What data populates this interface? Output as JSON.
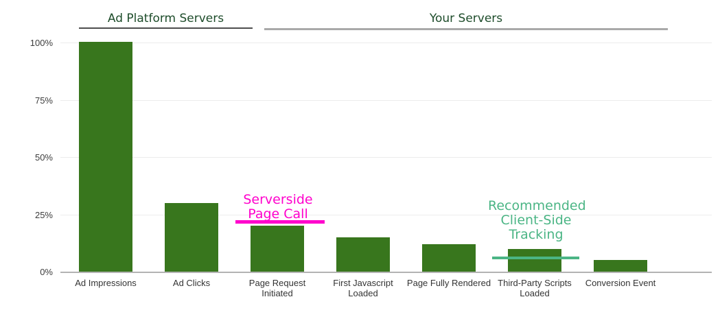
{
  "groups": [
    {
      "label": "Ad Platform Servers"
    },
    {
      "label": "Your Servers"
    }
  ],
  "y_axis": {
    "t100": "100%",
    "t75": "75%",
    "t50": "50%",
    "t25": "25%",
    "t0": "0%"
  },
  "annotations": {
    "serverside": {
      "text": "Serverside Page Call",
      "color": "#ff00cc",
      "level_pct": 20
    },
    "client_side": {
      "text": "Recommended Client-Side Tracking",
      "color": "#4bb585",
      "level_pct": 6
    }
  },
  "colors": {
    "bar": "#38761d",
    "header_text": "#1d4c2a",
    "header_rule_dark": "#4d4d4d",
    "header_rule_light": "#a9a9a9",
    "gridline": "#ececec",
    "baseline": "#b3b3b3",
    "axis_text": "#333333"
  },
  "chart_data": {
    "type": "bar",
    "categories": [
      "Ad Impressions",
      "Ad Clicks",
      "Page Request Initiated",
      "First Javascript Loaded",
      "Page Fully Rendered",
      "Third-Party Scripts Loaded",
      "Conversion Event"
    ],
    "values": [
      100,
      30,
      20,
      15,
      12,
      10,
      5
    ],
    "unit": "%",
    "title": "",
    "xlabel": "",
    "ylabel": "",
    "ylim": [
      0,
      100
    ],
    "yticks": [
      "0%",
      "25%",
      "50%",
      "75%",
      "100%"
    ],
    "grid": "horizontal",
    "legend": "none",
    "group_headers": [
      {
        "label": "Ad Platform Servers",
        "category_range": [
          0,
          1
        ]
      },
      {
        "label": "Your Servers",
        "category_range": [
          2,
          6
        ]
      }
    ],
    "annotations": [
      {
        "text": "Serverside Page Call",
        "target_category": "Page Request Initiated",
        "line_level_pct": 20,
        "color": "#ff00cc"
      },
      {
        "text": "Recommended Client-Side Tracking",
        "target_category": "Third-Party Scripts Loaded",
        "line_level_pct": 6,
        "color": "#4bb585"
      }
    ]
  }
}
